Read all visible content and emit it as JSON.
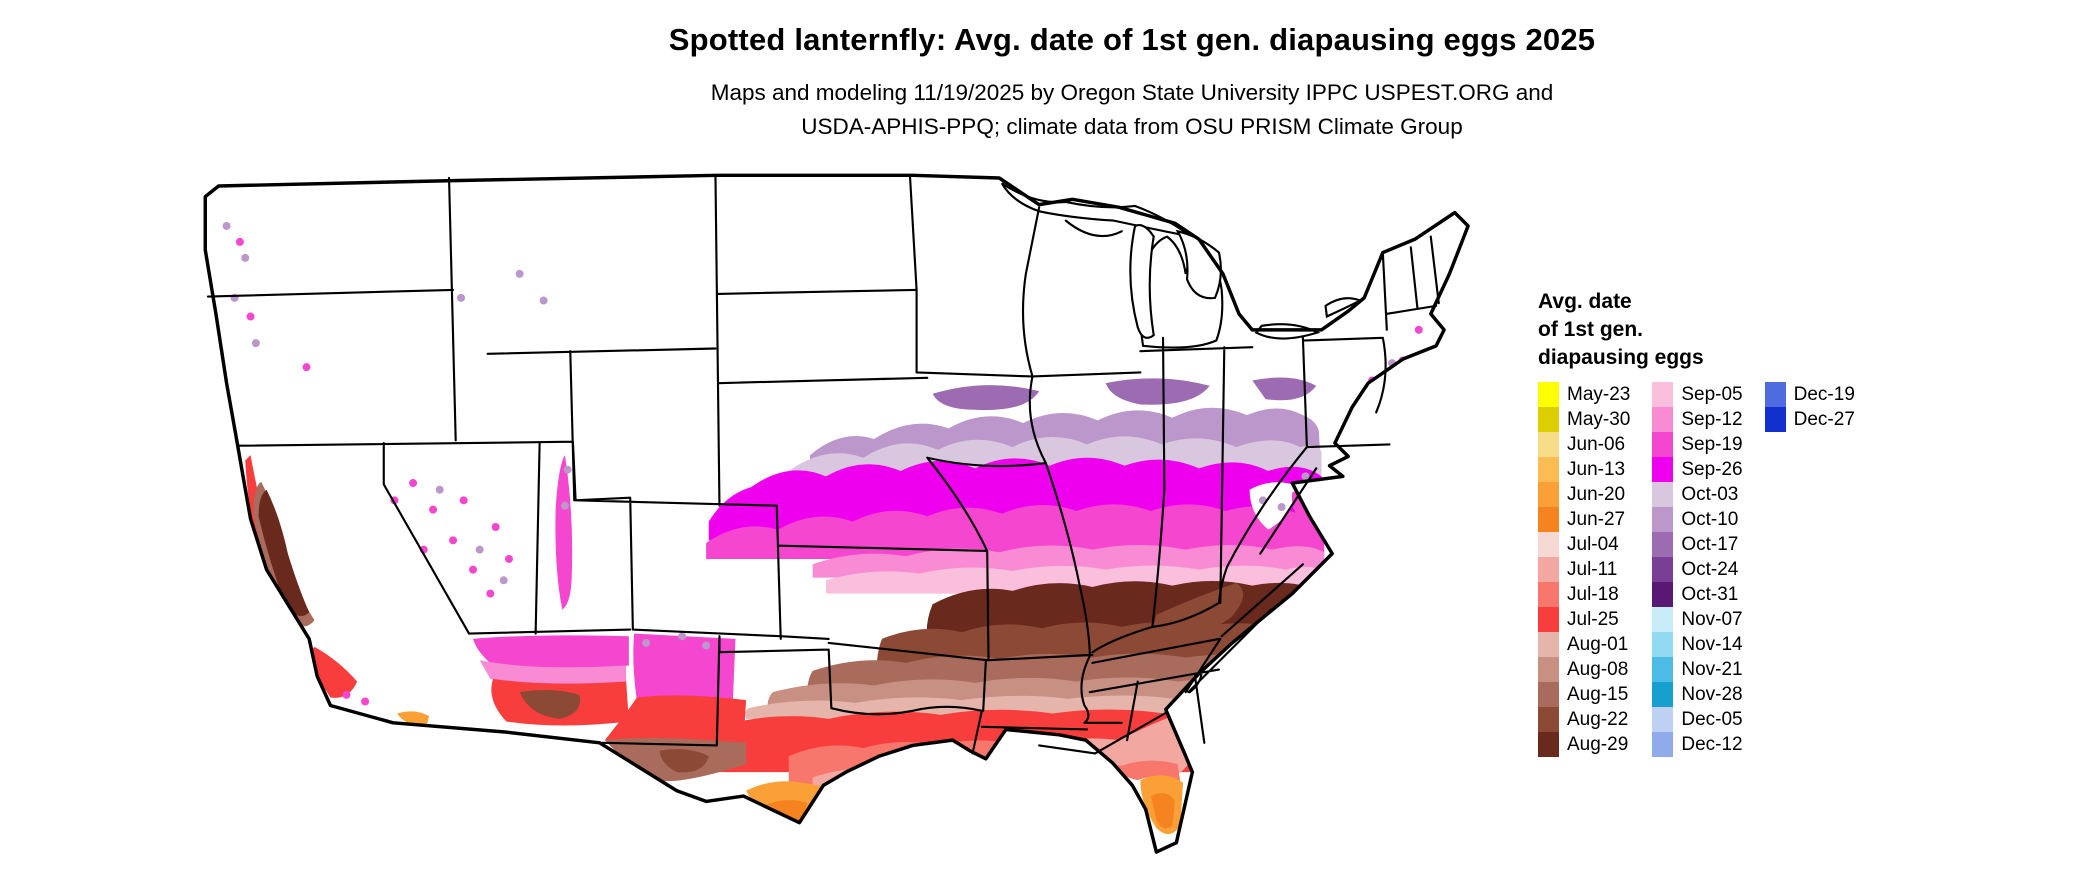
{
  "title": "Spotted lanternfly: Avg. date of 1st gen. diapausing eggs 2025",
  "subtitle": {
    "line1": "Maps and modeling 11/19/2025 by Oregon State University IPPC USPEST.ORG and",
    "line2": "USDA-APHIS-PPQ; climate data from OSU PRISM Climate Group"
  },
  "legend": {
    "title_line1": "Avg. date",
    "title_line2": "of 1st gen.",
    "title_line3": "diapausing eggs",
    "columns": [
      [
        "May-23",
        "May-30",
        "Jun-06",
        "Jun-13",
        "Jun-20",
        "Jun-27",
        "Jul-04",
        "Jul-11",
        "Jul-18",
        "Jul-25",
        "Aug-01",
        "Aug-08",
        "Aug-15",
        "Aug-22",
        "Aug-29"
      ],
      [
        "Sep-05",
        "Sep-12",
        "Sep-19",
        "Sep-26",
        "Oct-03",
        "Oct-10",
        "Oct-17",
        "Oct-24",
        "Oct-31",
        "Nov-07",
        "Nov-14",
        "Nov-21",
        "Nov-28",
        "Dec-05",
        "Dec-12"
      ],
      [
        "Dec-19",
        "Dec-27"
      ]
    ]
  },
  "palette": {
    "May-23": "#FFFF00",
    "May-30": "#DCCE00",
    "Jun-06": "#F8DD88",
    "Jun-13": "#FBBC54",
    "Jun-20": "#FAA036",
    "Jun-27": "#F5831F",
    "Jul-04": "#F6D9D2",
    "Jul-11": "#F2A8A0",
    "Jul-18": "#F7776C",
    "Jul-25": "#F83E3C",
    "Aug-01": "#E5B5AC",
    "Aug-08": "#C79083",
    "Aug-15": "#A96B5B",
    "Aug-22": "#8C4936",
    "Aug-29": "#69291C",
    "Sep-05": "#FBBFDE",
    "Sep-12": "#F98BD5",
    "Sep-19": "#F446CF",
    "Sep-26": "#EE00EE",
    "Oct-03": "#D9C6DF",
    "Oct-10": "#BB97CC",
    "Oct-17": "#9C6BB2",
    "Oct-24": "#7B3E95",
    "Oct-31": "#581874",
    "Nov-07": "#C9ECF9",
    "Nov-14": "#92D9F2",
    "Nov-21": "#4CBBE5",
    "Nov-28": "#179FCE",
    "Dec-05": "#BFD1F2",
    "Dec-12": "#8FABEB",
    "Dec-19": "#4E6BDF",
    "Dec-27": "#1130CE"
  }
}
